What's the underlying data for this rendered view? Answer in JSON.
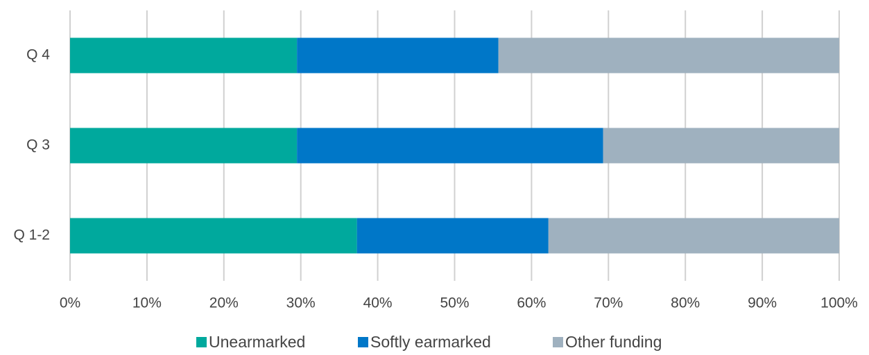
{
  "chart_data": {
    "type": "stacked-barh",
    "categories": [
      "Q 4",
      "Q 3",
      "Q 1-2"
    ],
    "series": [
      {
        "name": "Unearmarked",
        "color": "#00a99d",
        "values": [
          29.5,
          29.5,
          37.3
        ]
      },
      {
        "name": "Softly earmarked",
        "color": "#0077c8",
        "values": [
          26.2,
          39.8,
          24.9
        ]
      },
      {
        "name": "Other funding",
        "color": "#9fb1bf",
        "values": [
          44.3,
          30.7,
          37.8
        ]
      }
    ],
    "xlim": [
      0,
      100
    ],
    "xticks": [
      {
        "value": 0,
        "label": "0%"
      },
      {
        "value": 10,
        "label": "10%"
      },
      {
        "value": 20,
        "label": "20%"
      },
      {
        "value": 30,
        "label": "30%"
      },
      {
        "value": 40,
        "label": "40%"
      },
      {
        "value": 50,
        "label": "50%"
      },
      {
        "value": 60,
        "label": "60%"
      },
      {
        "value": 70,
        "label": "70%"
      },
      {
        "value": 80,
        "label": "80%"
      },
      {
        "value": 90,
        "label": "90%"
      },
      {
        "value": 100,
        "label": "100%"
      }
    ],
    "grid": true,
    "legend": "bottom"
  }
}
